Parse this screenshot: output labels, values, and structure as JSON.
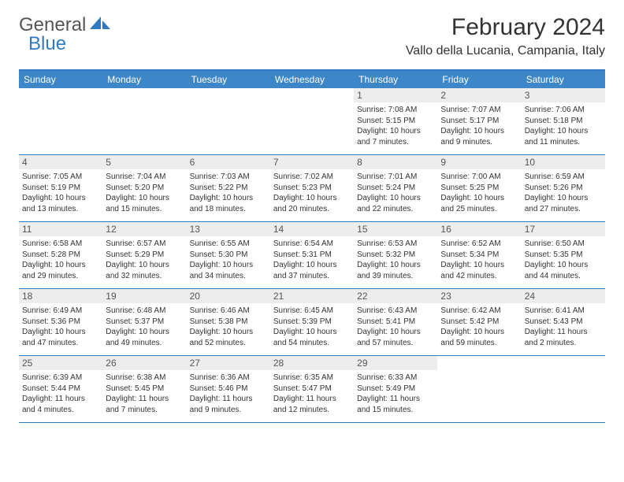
{
  "brand": {
    "part1": "General",
    "part2": "Blue"
  },
  "title": "February 2024",
  "location": "Vallo della Lucania, Campania, Italy",
  "weekdays": [
    "Sunday",
    "Monday",
    "Tuesday",
    "Wednesday",
    "Thursday",
    "Friday",
    "Saturday"
  ],
  "colors": {
    "header_bg": "#3d87c9",
    "rule": "#2f7ac0",
    "daynum_bg": "#ededed",
    "text": "#333333"
  },
  "weeks": [
    [
      {
        "empty": true
      },
      {
        "empty": true
      },
      {
        "empty": true
      },
      {
        "empty": true
      },
      {
        "day": "1",
        "sunrise": "Sunrise: 7:08 AM",
        "sunset": "Sunset: 5:15 PM",
        "dl1": "Daylight: 10 hours",
        "dl2": "and 7 minutes."
      },
      {
        "day": "2",
        "sunrise": "Sunrise: 7:07 AM",
        "sunset": "Sunset: 5:17 PM",
        "dl1": "Daylight: 10 hours",
        "dl2": "and 9 minutes."
      },
      {
        "day": "3",
        "sunrise": "Sunrise: 7:06 AM",
        "sunset": "Sunset: 5:18 PM",
        "dl1": "Daylight: 10 hours",
        "dl2": "and 11 minutes."
      }
    ],
    [
      {
        "day": "4",
        "sunrise": "Sunrise: 7:05 AM",
        "sunset": "Sunset: 5:19 PM",
        "dl1": "Daylight: 10 hours",
        "dl2": "and 13 minutes."
      },
      {
        "day": "5",
        "sunrise": "Sunrise: 7:04 AM",
        "sunset": "Sunset: 5:20 PM",
        "dl1": "Daylight: 10 hours",
        "dl2": "and 15 minutes."
      },
      {
        "day": "6",
        "sunrise": "Sunrise: 7:03 AM",
        "sunset": "Sunset: 5:22 PM",
        "dl1": "Daylight: 10 hours",
        "dl2": "and 18 minutes."
      },
      {
        "day": "7",
        "sunrise": "Sunrise: 7:02 AM",
        "sunset": "Sunset: 5:23 PM",
        "dl1": "Daylight: 10 hours",
        "dl2": "and 20 minutes."
      },
      {
        "day": "8",
        "sunrise": "Sunrise: 7:01 AM",
        "sunset": "Sunset: 5:24 PM",
        "dl1": "Daylight: 10 hours",
        "dl2": "and 22 minutes."
      },
      {
        "day": "9",
        "sunrise": "Sunrise: 7:00 AM",
        "sunset": "Sunset: 5:25 PM",
        "dl1": "Daylight: 10 hours",
        "dl2": "and 25 minutes."
      },
      {
        "day": "10",
        "sunrise": "Sunrise: 6:59 AM",
        "sunset": "Sunset: 5:26 PM",
        "dl1": "Daylight: 10 hours",
        "dl2": "and 27 minutes."
      }
    ],
    [
      {
        "day": "11",
        "sunrise": "Sunrise: 6:58 AM",
        "sunset": "Sunset: 5:28 PM",
        "dl1": "Daylight: 10 hours",
        "dl2": "and 29 minutes."
      },
      {
        "day": "12",
        "sunrise": "Sunrise: 6:57 AM",
        "sunset": "Sunset: 5:29 PM",
        "dl1": "Daylight: 10 hours",
        "dl2": "and 32 minutes."
      },
      {
        "day": "13",
        "sunrise": "Sunrise: 6:55 AM",
        "sunset": "Sunset: 5:30 PM",
        "dl1": "Daylight: 10 hours",
        "dl2": "and 34 minutes."
      },
      {
        "day": "14",
        "sunrise": "Sunrise: 6:54 AM",
        "sunset": "Sunset: 5:31 PM",
        "dl1": "Daylight: 10 hours",
        "dl2": "and 37 minutes."
      },
      {
        "day": "15",
        "sunrise": "Sunrise: 6:53 AM",
        "sunset": "Sunset: 5:32 PM",
        "dl1": "Daylight: 10 hours",
        "dl2": "and 39 minutes."
      },
      {
        "day": "16",
        "sunrise": "Sunrise: 6:52 AM",
        "sunset": "Sunset: 5:34 PM",
        "dl1": "Daylight: 10 hours",
        "dl2": "and 42 minutes."
      },
      {
        "day": "17",
        "sunrise": "Sunrise: 6:50 AM",
        "sunset": "Sunset: 5:35 PM",
        "dl1": "Daylight: 10 hours",
        "dl2": "and 44 minutes."
      }
    ],
    [
      {
        "day": "18",
        "sunrise": "Sunrise: 6:49 AM",
        "sunset": "Sunset: 5:36 PM",
        "dl1": "Daylight: 10 hours",
        "dl2": "and 47 minutes."
      },
      {
        "day": "19",
        "sunrise": "Sunrise: 6:48 AM",
        "sunset": "Sunset: 5:37 PM",
        "dl1": "Daylight: 10 hours",
        "dl2": "and 49 minutes."
      },
      {
        "day": "20",
        "sunrise": "Sunrise: 6:46 AM",
        "sunset": "Sunset: 5:38 PM",
        "dl1": "Daylight: 10 hours",
        "dl2": "and 52 minutes."
      },
      {
        "day": "21",
        "sunrise": "Sunrise: 6:45 AM",
        "sunset": "Sunset: 5:39 PM",
        "dl1": "Daylight: 10 hours",
        "dl2": "and 54 minutes."
      },
      {
        "day": "22",
        "sunrise": "Sunrise: 6:43 AM",
        "sunset": "Sunset: 5:41 PM",
        "dl1": "Daylight: 10 hours",
        "dl2": "and 57 minutes."
      },
      {
        "day": "23",
        "sunrise": "Sunrise: 6:42 AM",
        "sunset": "Sunset: 5:42 PM",
        "dl1": "Daylight: 10 hours",
        "dl2": "and 59 minutes."
      },
      {
        "day": "24",
        "sunrise": "Sunrise: 6:41 AM",
        "sunset": "Sunset: 5:43 PM",
        "dl1": "Daylight: 11 hours",
        "dl2": "and 2 minutes."
      }
    ],
    [
      {
        "day": "25",
        "sunrise": "Sunrise: 6:39 AM",
        "sunset": "Sunset: 5:44 PM",
        "dl1": "Daylight: 11 hours",
        "dl2": "and 4 minutes."
      },
      {
        "day": "26",
        "sunrise": "Sunrise: 6:38 AM",
        "sunset": "Sunset: 5:45 PM",
        "dl1": "Daylight: 11 hours",
        "dl2": "and 7 minutes."
      },
      {
        "day": "27",
        "sunrise": "Sunrise: 6:36 AM",
        "sunset": "Sunset: 5:46 PM",
        "dl1": "Daylight: 11 hours",
        "dl2": "and 9 minutes."
      },
      {
        "day": "28",
        "sunrise": "Sunrise: 6:35 AM",
        "sunset": "Sunset: 5:47 PM",
        "dl1": "Daylight: 11 hours",
        "dl2": "and 12 minutes."
      },
      {
        "day": "29",
        "sunrise": "Sunrise: 6:33 AM",
        "sunset": "Sunset: 5:49 PM",
        "dl1": "Daylight: 11 hours",
        "dl2": "and 15 minutes."
      },
      {
        "empty": true
      },
      {
        "empty": true
      }
    ]
  ]
}
